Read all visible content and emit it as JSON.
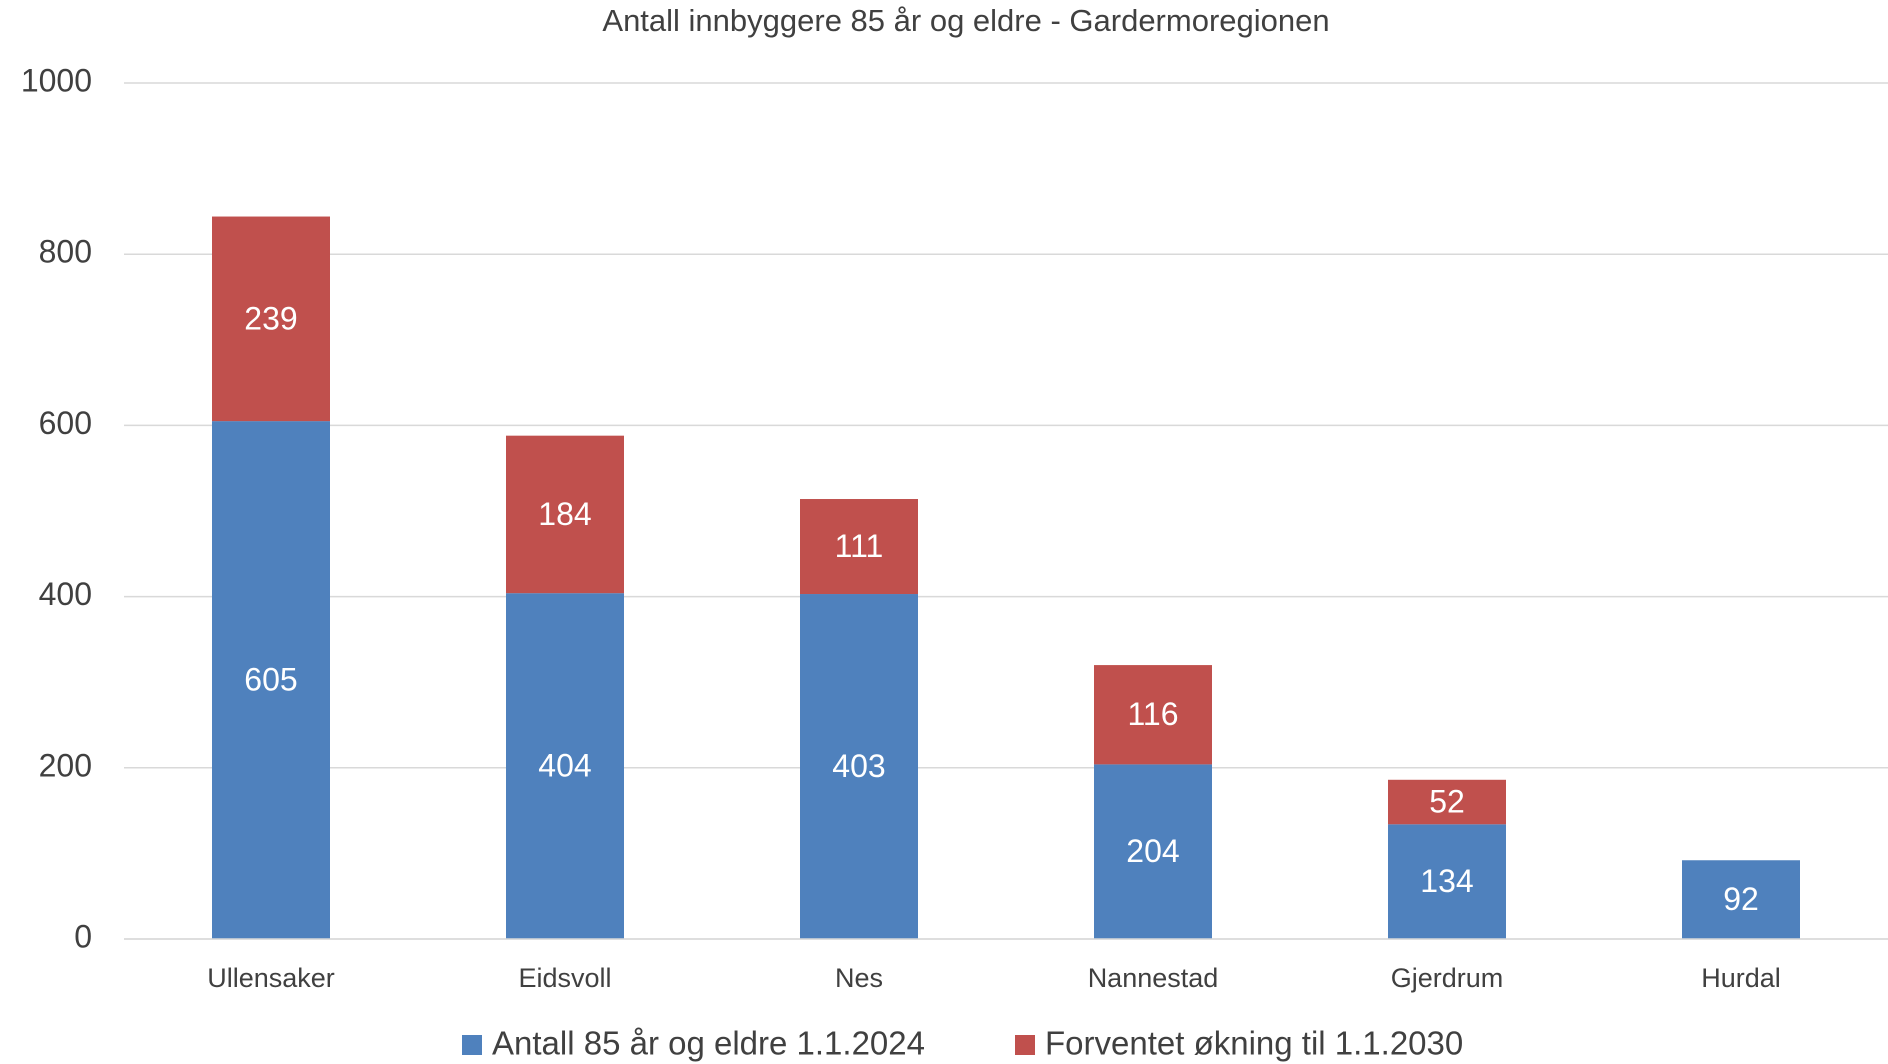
{
  "chart_data": {
    "type": "bar",
    "stacked": true,
    "title": "Antall innbyggere 85 år og eldre - Gardermoregionen",
    "categories": [
      "Ullensaker",
      "Eidsvoll",
      "Nes",
      "Nannestad",
      "Gjerdrum",
      "Hurdal"
    ],
    "series": [
      {
        "name": "Antall 85 år og eldre 1.1.2024",
        "color": "#4f81bd",
        "values": [
          605,
          404,
          403,
          204,
          134,
          92
        ]
      },
      {
        "name": "Forventet økning til 1.1.2030",
        "color": "#c0504d",
        "values": [
          239,
          184,
          111,
          116,
          52,
          null
        ]
      }
    ],
    "ylim": [
      0,
      1000
    ],
    "yticks": [
      0,
      200,
      400,
      600,
      800,
      1000
    ],
    "grid": true,
    "legend": "bottom"
  }
}
